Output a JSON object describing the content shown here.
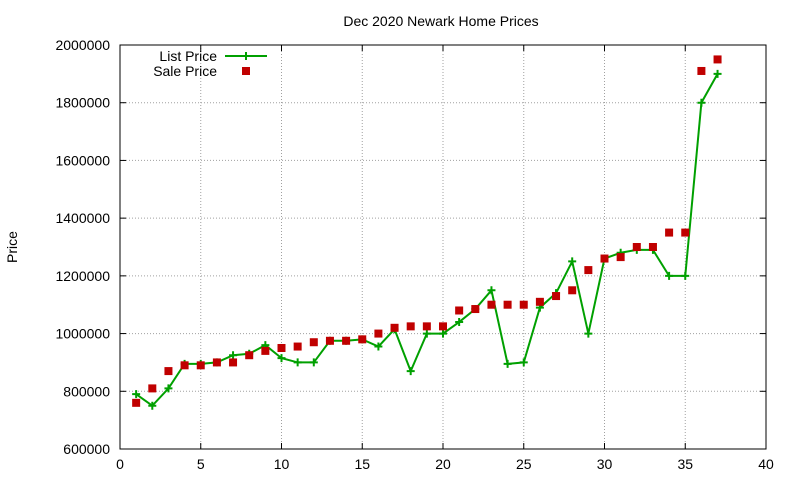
{
  "chart_data": {
    "type": "line",
    "title": "Dec 2020 Newark Home Prices",
    "xlabel": "",
    "ylabel": "Price",
    "xlim": [
      0,
      40
    ],
    "ylim": [
      600000,
      2000000
    ],
    "x_ticks": [
      "0",
      "5",
      "10",
      "15",
      "20",
      "25",
      "30",
      "35",
      "40"
    ],
    "y_ticks": [
      "600000",
      "800000",
      "1000000",
      "1200000",
      "1400000",
      "1600000",
      "1800000",
      "2000000"
    ],
    "grid": true,
    "legend_position": "top-left",
    "colors": {
      "list": "#00a000",
      "sale": "#c00000"
    },
    "x": [
      1,
      2,
      3,
      4,
      5,
      6,
      7,
      8,
      9,
      10,
      11,
      12,
      13,
      14,
      15,
      16,
      17,
      18,
      19,
      20,
      21,
      22,
      23,
      24,
      25,
      26,
      27,
      28,
      29,
      30,
      31,
      32,
      33,
      34,
      35,
      36,
      37
    ],
    "series": [
      {
        "name": "List Price",
        "style": "line+plus",
        "values": [
          790000,
          750000,
          810000,
          895000,
          895000,
          900000,
          925000,
          930000,
          960000,
          915000,
          900000,
          900000,
          975000,
          975000,
          980000,
          955000,
          1015000,
          870000,
          1000000,
          1000000,
          1040000,
          1085000,
          1150000,
          895000,
          900000,
          1090000,
          1140000,
          1250000,
          1000000,
          1260000,
          1280000,
          1290000,
          1290000,
          1200000,
          1200000,
          1800000,
          1900000
        ]
      },
      {
        "name": "Sale Price",
        "style": "square-points",
        "values": [
          760000,
          810000,
          870000,
          890000,
          890000,
          900000,
          900000,
          925000,
          940000,
          950000,
          955000,
          970000,
          975000,
          975000,
          980000,
          1000000,
          1020000,
          1025000,
          1025000,
          1025000,
          1080000,
          1085000,
          1100000,
          1100000,
          1100000,
          1110000,
          1130000,
          1150000,
          1220000,
          1260000,
          1265000,
          1300000,
          1300000,
          1350000,
          1350000,
          1910000,
          1950000
        ]
      }
    ]
  }
}
